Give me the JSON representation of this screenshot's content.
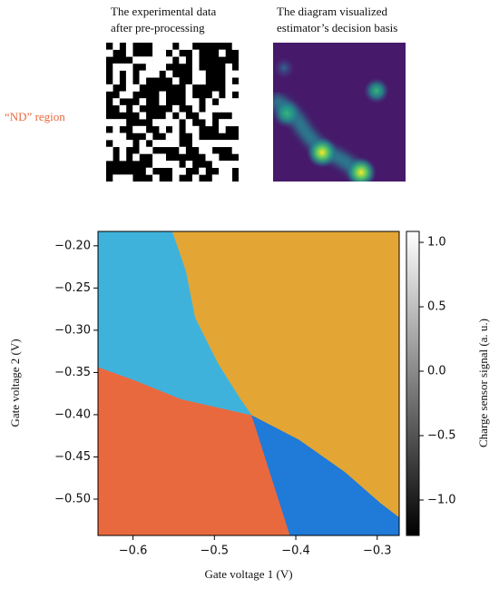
{
  "header": {
    "left_caption": [
      "The experimental data",
      "after pre-processing"
    ],
    "right_caption": [
      "The diagram visualized",
      "estimator’s decision basis"
    ],
    "region_label": "“ND” region"
  },
  "chart_data": {
    "type": "region",
    "xlabel": "Gate voltage 1 (V)",
    "ylabel": "Gate voltage 2 (V)",
    "xlim": [
      -0.643,
      -0.273
    ],
    "ylim": [
      -0.543,
      -0.183
    ],
    "xticks": [
      {
        "value": -0.6,
        "label": "−0.6"
      },
      {
        "value": -0.5,
        "label": "−0.5"
      },
      {
        "value": -0.4,
        "label": "−0.4"
      },
      {
        "value": -0.3,
        "label": "−0.3"
      }
    ],
    "yticks": [
      {
        "value": -0.2,
        "label": "−0.20"
      },
      {
        "value": -0.25,
        "label": "−0.25"
      },
      {
        "value": -0.3,
        "label": "−0.30"
      },
      {
        "value": -0.35,
        "label": "−0.35"
      },
      {
        "value": -0.4,
        "label": "−0.40"
      },
      {
        "value": -0.45,
        "label": "−0.45"
      },
      {
        "value": -0.5,
        "label": "−0.50"
      }
    ],
    "regions": [
      {
        "color": "#e3a634",
        "points": [
          [
            -0.552,
            -0.183
          ],
          [
            -0.273,
            -0.183
          ],
          [
            -0.273,
            -0.522
          ],
          [
            -0.296,
            -0.505
          ],
          [
            -0.34,
            -0.468
          ],
          [
            -0.396,
            -0.43
          ],
          [
            -0.454,
            -0.401
          ],
          [
            -0.468,
            -0.382
          ],
          [
            -0.496,
            -0.339
          ],
          [
            -0.524,
            -0.285
          ],
          [
            -0.535,
            -0.231
          ]
        ]
      },
      {
        "color": "#3fb2db",
        "points": [
          [
            -0.643,
            -0.183
          ],
          [
            -0.552,
            -0.183
          ],
          [
            -0.535,
            -0.231
          ],
          [
            -0.524,
            -0.285
          ],
          [
            -0.496,
            -0.339
          ],
          [
            -0.468,
            -0.382
          ],
          [
            -0.454,
            -0.401
          ],
          [
            -0.541,
            -0.382
          ],
          [
            -0.597,
            -0.36
          ],
          [
            -0.643,
            -0.344
          ]
        ]
      },
      {
        "color": "#e9693f",
        "points": [
          [
            -0.643,
            -0.344
          ],
          [
            -0.597,
            -0.36
          ],
          [
            -0.541,
            -0.382
          ],
          [
            -0.454,
            -0.401
          ],
          [
            -0.407,
            -0.543
          ],
          [
            -0.643,
            -0.543
          ]
        ]
      },
      {
        "color": "#1f7ad8",
        "points": [
          [
            -0.454,
            -0.401
          ],
          [
            -0.396,
            -0.43
          ],
          [
            -0.34,
            -0.468
          ],
          [
            -0.296,
            -0.505
          ],
          [
            -0.273,
            -0.522
          ],
          [
            -0.273,
            -0.543
          ],
          [
            -0.407,
            -0.543
          ]
        ]
      }
    ],
    "colorbar": {
      "label": "Charge sensor signal (a. u.)",
      "lim": [
        -1.275,
        1.085
      ],
      "ticks": [
        {
          "value": 1.0,
          "label": "1.0"
        },
        {
          "value": 0.5,
          "label": "0.5"
        },
        {
          "value": 0.0,
          "label": "0.0"
        },
        {
          "value": -0.5,
          "label": "−0.5"
        },
        {
          "value": -1.0,
          "label": "−1.0"
        }
      ]
    }
  }
}
